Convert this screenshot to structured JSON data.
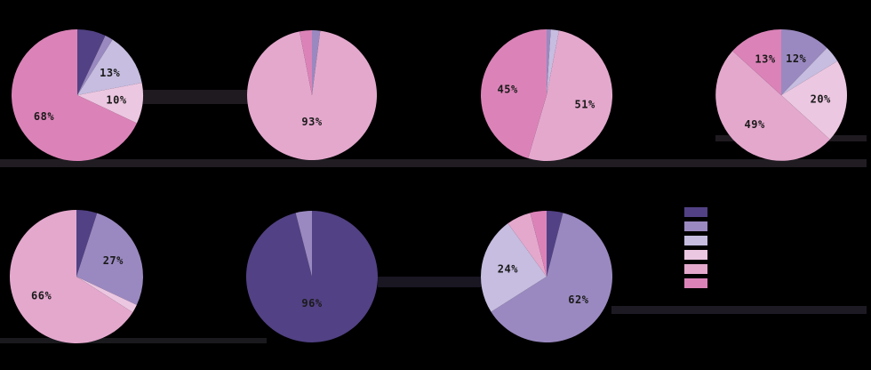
{
  "colors": {
    "background": "#000000",
    "categories": [
      "#524184",
      "#9a89c0",
      "#c6bde0",
      "#ecc7e1",
      "#e4a8cd",
      "#db83b8"
    ]
  },
  "legend": {
    "placement": "right"
  },
  "chart_data": [
    {
      "type": "pie",
      "values": [
        7,
        2,
        13,
        10,
        0,
        68
      ],
      "labels": [
        "",
        "",
        "13%",
        "10%",
        "",
        "68%"
      ]
    },
    {
      "type": "pie",
      "values": [
        0,
        2,
        0,
        0,
        93,
        3
      ],
      "labels": [
        "",
        "",
        "",
        "",
        "93%",
        ""
      ]
    },
    {
      "type": "pie",
      "values": [
        0,
        1,
        2,
        0,
        51,
        45
      ],
      "labels": [
        "",
        "",
        "",
        "",
        "51%",
        "45%"
      ]
    },
    {
      "type": "pie",
      "values": [
        0,
        12,
        4,
        20,
        49,
        13
      ],
      "labels": [
        "",
        "12%",
        "",
        "20%",
        "49%",
        "13%"
      ]
    },
    {
      "type": "pie",
      "values": [
        5,
        27,
        0,
        2,
        66,
        0
      ],
      "labels": [
        "",
        "27%",
        "",
        "",
        "66%",
        ""
      ]
    },
    {
      "type": "pie",
      "values": [
        96,
        4,
        0,
        0,
        0,
        0
      ],
      "labels": [
        "96%",
        "",
        "",
        "",
        "",
        ""
      ]
    },
    {
      "type": "pie",
      "values": [
        4,
        62,
        24,
        0,
        6,
        4
      ],
      "labels": [
        "",
        "62%",
        "24%",
        "",
        "",
        ""
      ]
    }
  ]
}
